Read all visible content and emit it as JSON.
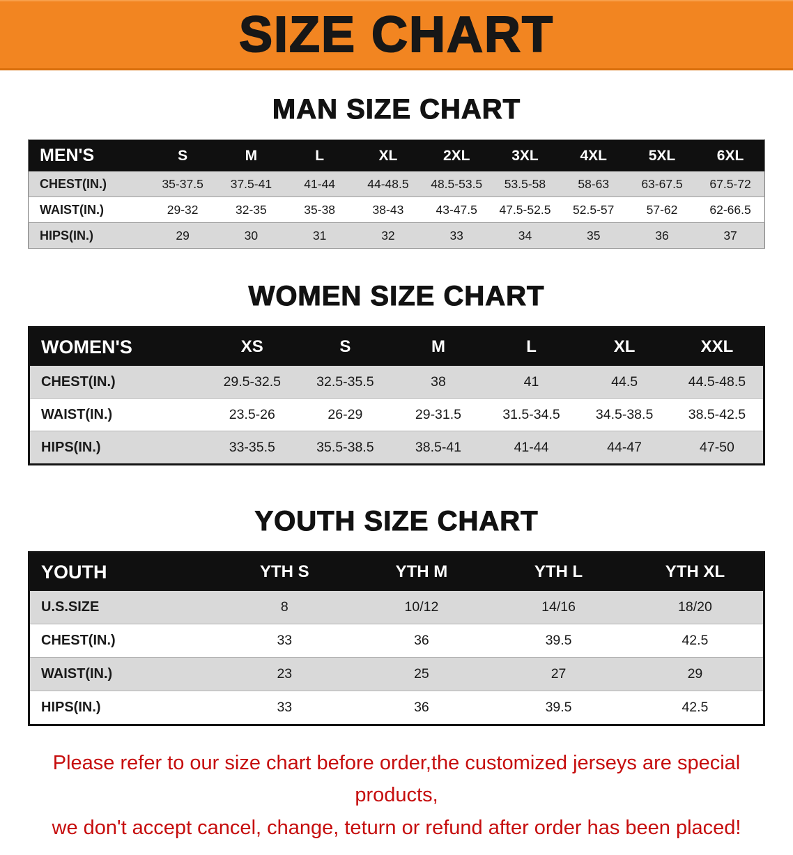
{
  "banner": {
    "title": "SIZE CHART",
    "bg_color": "#f28521",
    "text_color": "#171717"
  },
  "sections": [
    {
      "heading": "MAN SIZE CHART",
      "table": {
        "header_label": "MEN'S",
        "columns": [
          "S",
          "M",
          "L",
          "XL",
          "2XL",
          "3XL",
          "4XL",
          "5XL",
          "6XL"
        ],
        "rows": [
          {
            "label": "CHEST(IN.)",
            "values": [
              "35-37.5",
              "37.5-41",
              "41-44",
              "44-48.5",
              "48.5-53.5",
              "53.5-58",
              "58-63",
              "63-67.5",
              "67.5-72"
            ]
          },
          {
            "label": "WAIST(IN.)",
            "values": [
              "29-32",
              "32-35",
              "35-38",
              "38-43",
              "43-47.5",
              "47.5-52.5",
              "52.5-57",
              "57-62",
              "62-66.5"
            ]
          },
          {
            "label": "HIPS(IN.)",
            "values": [
              "29",
              "30",
              "31",
              "32",
              "33",
              "34",
              "35",
              "36",
              "37"
            ]
          }
        ]
      }
    },
    {
      "heading": "WOMEN SIZE CHART",
      "table": {
        "header_label": "WOMEN'S",
        "columns": [
          "XS",
          "S",
          "M",
          "L",
          "XL",
          "XXL"
        ],
        "rows": [
          {
            "label": "CHEST(IN.)",
            "values": [
              "29.5-32.5",
              "32.5-35.5",
              "38",
              "41",
              "44.5",
              "44.5-48.5"
            ]
          },
          {
            "label": "WAIST(IN.)",
            "values": [
              "23.5-26",
              "26-29",
              "29-31.5",
              "31.5-34.5",
              "34.5-38.5",
              "38.5-42.5"
            ]
          },
          {
            "label": "HIPS(IN.)",
            "values": [
              "33-35.5",
              "35.5-38.5",
              "38.5-41",
              "41-44",
              "44-47",
              "47-50"
            ]
          }
        ]
      }
    },
    {
      "heading": "YOUTH SIZE CHART",
      "table": {
        "header_label": "YOUTH",
        "columns": [
          "YTH S",
          "YTH M",
          "YTH L",
          "YTH XL"
        ],
        "rows": [
          {
            "label": "U.S.SIZE",
            "values": [
              "8",
              "10/12",
              "14/16",
              "18/20"
            ]
          },
          {
            "label": "CHEST(IN.)",
            "values": [
              "33",
              "36",
              "39.5",
              "42.5"
            ]
          },
          {
            "label": "WAIST(IN.)",
            "values": [
              "23",
              "25",
              "27",
              "29"
            ]
          },
          {
            "label": "HIPS(IN.)",
            "values": [
              "33",
              "36",
              "39.5",
              "42.5"
            ]
          }
        ]
      }
    }
  ],
  "footer": {
    "line1": "Please refer to our size chart before order,the customized jerseys are special products,",
    "line2": "we don't accept cancel, change, teturn or refund after order has been placed!",
    "text_color": "#c60d0d"
  },
  "colors": {
    "table_header_bg": "#101010",
    "row_shade": "#d9d9d9",
    "banner_orange": "#f28521"
  }
}
